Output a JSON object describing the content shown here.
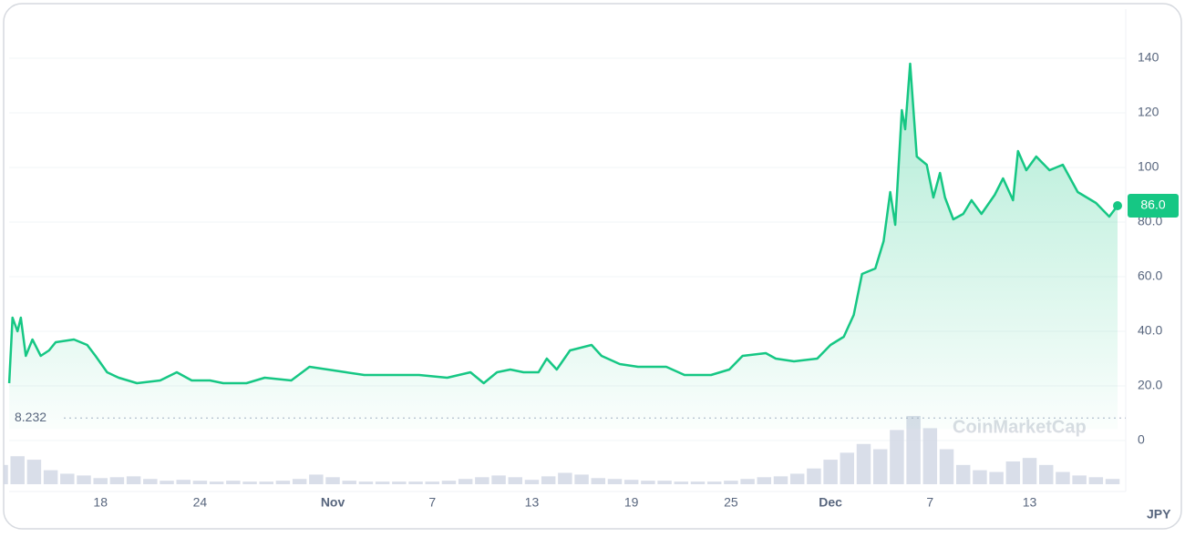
{
  "chart_data": {
    "type": "line",
    "x": [
      0.5,
      0.7,
      1.0,
      1.2,
      1.5,
      1.9,
      2.4,
      2.9,
      3.3,
      4.4,
      5.2,
      5.7,
      6.4,
      7.1,
      8.2,
      9.6,
      10.6,
      11.5,
      12.6,
      13.4,
      14.8,
      15.9,
      17.5,
      18.6,
      19.7,
      20.8,
      21.9,
      23.6,
      25.2,
      26.9,
      28.3,
      29.1,
      29.9,
      30.7,
      31.5,
      32.4,
      32.9,
      33.5,
      34.3,
      35.6,
      36.2,
      37.3,
      38.4,
      40.1,
      41.2,
      42.8,
      43.9,
      44.7,
      46.1,
      46.7,
      47.8,
      49.2,
      50.0,
      50.8,
      51.4,
      51.9,
      52.7,
      53.2,
      53.6,
      53.9,
      54.3,
      54.5,
      54.8,
      55.2,
      55.8,
      56.2,
      56.6,
      56.9,
      57.4,
      58.0,
      58.5,
      59.1,
      59.9,
      60.4,
      61.0,
      61.3,
      61.8,
      62.4,
      63.2,
      64.0,
      64.9,
      66.0,
      66.8,
      67.3
    ],
    "series": [
      {
        "color": "#16c784",
        "values": [
          21,
          45,
          40,
          45,
          31,
          37,
          31,
          33,
          36,
          37,
          35,
          31,
          25,
          23,
          21,
          22,
          25,
          22,
          22,
          21,
          21,
          23,
          22,
          27,
          26,
          25,
          24,
          24,
          24,
          23,
          25,
          21,
          25,
          26,
          25,
          25,
          30,
          26,
          33,
          35,
          31,
          28,
          27,
          27,
          24,
          24,
          26,
          31,
          32,
          30,
          29,
          30,
          35,
          38,
          46,
          61,
          63,
          73,
          91,
          79,
          121,
          114,
          138,
          104,
          101,
          89,
          98,
          89,
          81,
          83,
          88,
          83,
          90,
          96,
          88,
          106,
          99,
          104,
          99,
          101,
          91,
          87,
          82,
          86
        ]
      }
    ],
    "volume": {
      "color": "#cfd6e4",
      "x": [
        0,
        1,
        2,
        3,
        4,
        5,
        6,
        7,
        8,
        9,
        10,
        11,
        12,
        13,
        14,
        15,
        16,
        17,
        18,
        19,
        20,
        21,
        22,
        23,
        24,
        25,
        26,
        27,
        28,
        29,
        30,
        31,
        32,
        33,
        34,
        35,
        36,
        37,
        38,
        39,
        40,
        41,
        42,
        43,
        44,
        45,
        46,
        47,
        48,
        49,
        50,
        51,
        52,
        53,
        54,
        55,
        56,
        57,
        58,
        59,
        60,
        61,
        62,
        63,
        64,
        65,
        66,
        67
      ],
      "values": [
        22,
        32,
        28,
        16,
        12,
        10,
        7,
        8,
        9,
        6,
        4,
        5,
        4,
        3,
        4,
        3,
        3,
        4,
        6,
        11,
        8,
        4,
        3,
        3,
        3,
        3,
        3,
        4,
        6,
        8,
        10,
        8,
        5,
        9,
        13,
        11,
        7,
        6,
        5,
        4,
        4,
        3,
        3,
        3,
        4,
        6,
        8,
        9,
        12,
        18,
        28,
        36,
        46,
        40,
        62,
        78,
        64,
        40,
        22,
        16,
        14,
        26,
        30,
        22,
        14,
        10,
        8,
        6
      ]
    },
    "ylim": [
      -16,
      158
    ],
    "yticks": [
      0,
      {
        "value": 20,
        "label": "20.0"
      },
      {
        "value": 40,
        "label": "40.0"
      },
      {
        "value": 60,
        "label": "60.0"
      },
      {
        "value": 80,
        "label": "80.0"
      },
      100,
      120,
      140
    ],
    "xlim": [
      0,
      67.3
    ],
    "xticks": [
      {
        "value": 6,
        "label": "18"
      },
      {
        "value": 12,
        "label": "24"
      },
      {
        "value": 20,
        "label": "Nov"
      },
      {
        "value": 26,
        "label": "7"
      },
      {
        "value": 32,
        "label": "13"
      },
      {
        "value": 38,
        "label": "19"
      },
      {
        "value": 44,
        "label": "25"
      },
      {
        "value": 50,
        "label": "Dec"
      },
      {
        "value": 56,
        "label": "7"
      },
      {
        "value": 62,
        "label": "13"
      }
    ],
    "current_price": {
      "value": 86,
      "label": "86.0"
    },
    "reference_price": 8.232,
    "currency": "JPY",
    "watermark": "CoinMarketCap",
    "grid": true
  }
}
